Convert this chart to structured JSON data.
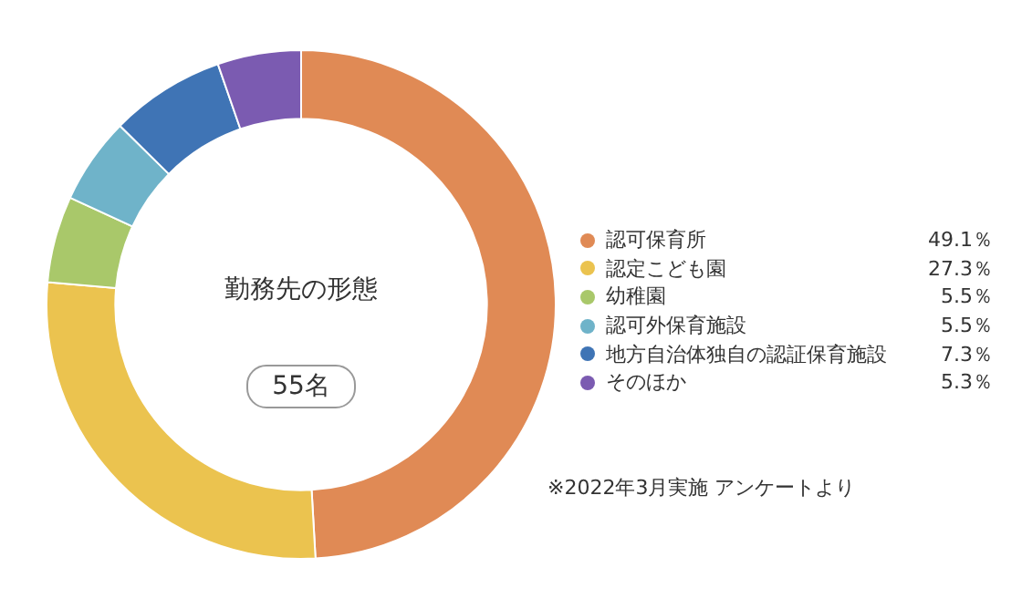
{
  "chart_data": {
    "type": "donut",
    "title": "勤務先の形態",
    "subtitle": "55名",
    "categories": [
      "認可保育所",
      "認定こども園",
      "幼稚園",
      "認可外保育施設",
      "地方自治体独自の認証保育施設",
      "そのほか"
    ],
    "values": [
      49.1,
      27.3,
      5.5,
      5.5,
      7.3,
      5.3
    ],
    "value_labels": [
      "49.1％",
      "27.3％",
      "5.5％",
      "5.5％",
      "7.3％",
      "5.3％"
    ],
    "colors": [
      "#e08a55",
      "#ebc34f",
      "#a9c86a",
      "#6fb3c9",
      "#3f74b5",
      "#7b5bb1"
    ],
    "legend": "right",
    "annotations": [
      "※2022年3月実施 アンケートより"
    ]
  }
}
